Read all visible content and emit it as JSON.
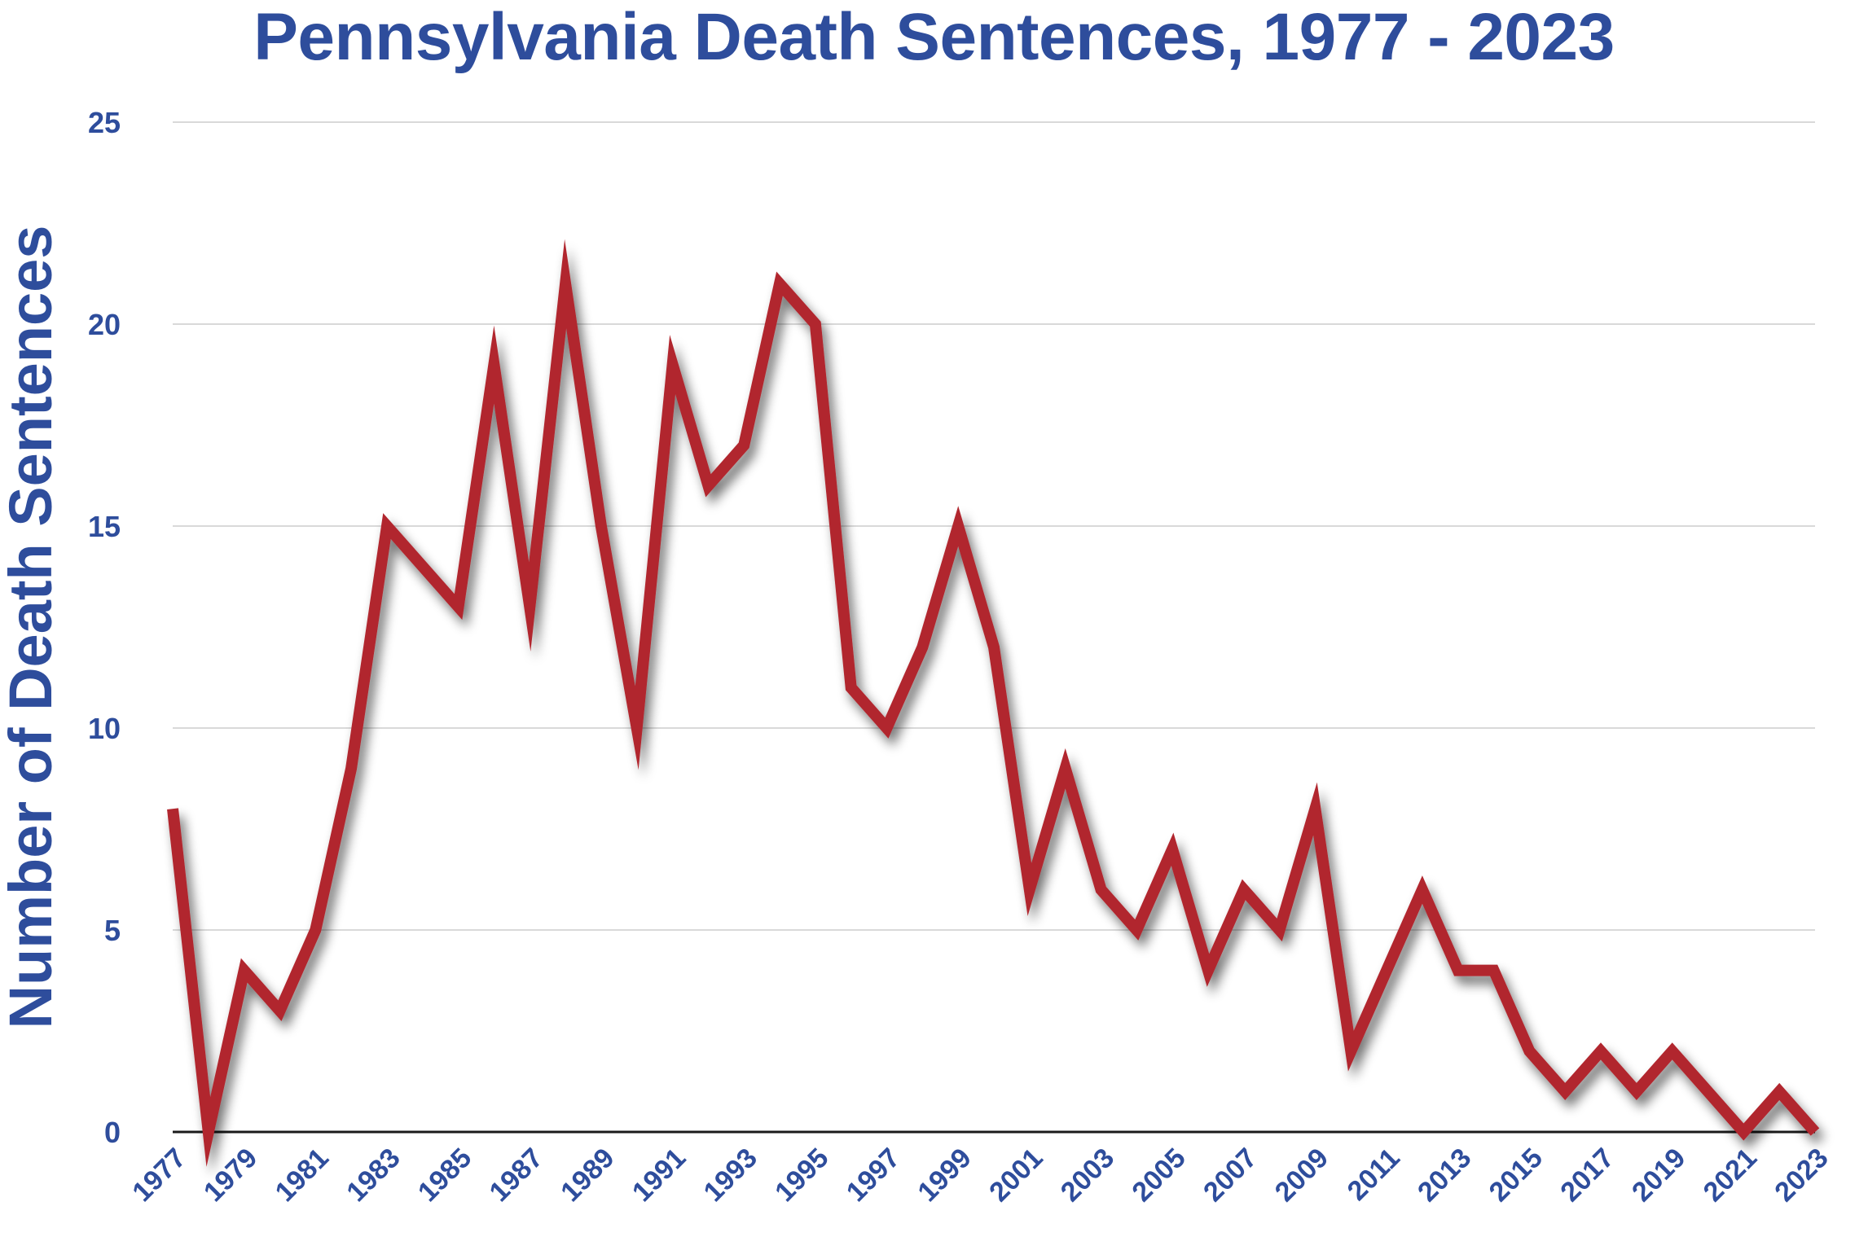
{
  "chart_data": {
    "type": "line",
    "title": "Pennsylvania Death Sentences, 1977 - 2023",
    "xlabel": "",
    "ylabel": "Number of Death Sentences",
    "ylim": [
      0,
      25
    ],
    "yticks": [
      0,
      5,
      10,
      15,
      20,
      25
    ],
    "xtick_labels": [
      "1977",
      "1979",
      "1981",
      "1983",
      "1985",
      "1987",
      "1989",
      "1991",
      "1993",
      "1995",
      "1997",
      "1999",
      "2001",
      "2003",
      "2005",
      "2007",
      "2009",
      "2011",
      "2013",
      "2015",
      "2017",
      "2019",
      "2021",
      "2023"
    ],
    "grid": true,
    "legend": "none",
    "line_color": "#b1262e",
    "text_color": "#2e4d9c",
    "x": [
      1977,
      1978,
      1979,
      1980,
      1981,
      1982,
      1983,
      1984,
      1985,
      1986,
      1987,
      1988,
      1989,
      1990,
      1991,
      1992,
      1993,
      1994,
      1995,
      1996,
      1997,
      1998,
      1999,
      2000,
      2001,
      2002,
      2003,
      2004,
      2005,
      2006,
      2007,
      2008,
      2009,
      2010,
      2011,
      2012,
      2013,
      2014,
      2015,
      2016,
      2017,
      2018,
      2019,
      2020,
      2021,
      2022,
      2023
    ],
    "series": [
      {
        "values": [
          8,
          0,
          4,
          3,
          5,
          9,
          15,
          14,
          13,
          19,
          13,
          21,
          15,
          10,
          19,
          16,
          17,
          21,
          20,
          11,
          10,
          12,
          15,
          12,
          6,
          9,
          6,
          5,
          7,
          4,
          6,
          5,
          8,
          2,
          4,
          6,
          4,
          4,
          2,
          1,
          2,
          1,
          2,
          1,
          0,
          1,
          0
        ]
      }
    ]
  }
}
